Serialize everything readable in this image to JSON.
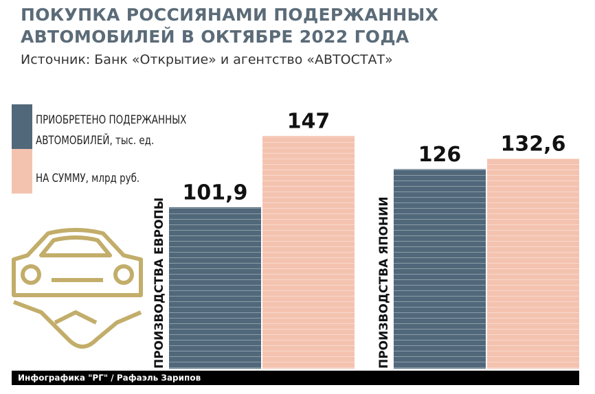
{
  "chart_data": {
    "type": "bar",
    "title": "ПОКУПКА РОССИЯНАМИ ПОДЕРЖАННЫХ АВТОМОБИЛЕЙ В ОКТЯБРЕ 2022 ГОДА",
    "subtitle": "Источник: Банк «Открытие» и агентство «АВТОСТАТ»",
    "categories": [
      "ПРОИЗВОДСТВА ЕВРОПЫ",
      "ПРОИЗВОДСТВА ЯПОНИИ"
    ],
    "series": [
      {
        "name": "ПРИОБРЕТЕНО ПОДЕРЖАННЫХ АВТОМОБИЛЕЙ, тыс. ед.",
        "color": "#50687a",
        "values": [
          101.9,
          126
        ],
        "value_labels": [
          "101,9",
          "126"
        ]
      },
      {
        "name": "НА СУММУ, млрд руб.",
        "color": "#f4c3b0",
        "values": [
          147,
          132.6
        ],
        "value_labels": [
          "147",
          "132,6"
        ]
      }
    ],
    "credit": "Инфографика \"РГ\" / Рафаэль Зарипов"
  }
}
